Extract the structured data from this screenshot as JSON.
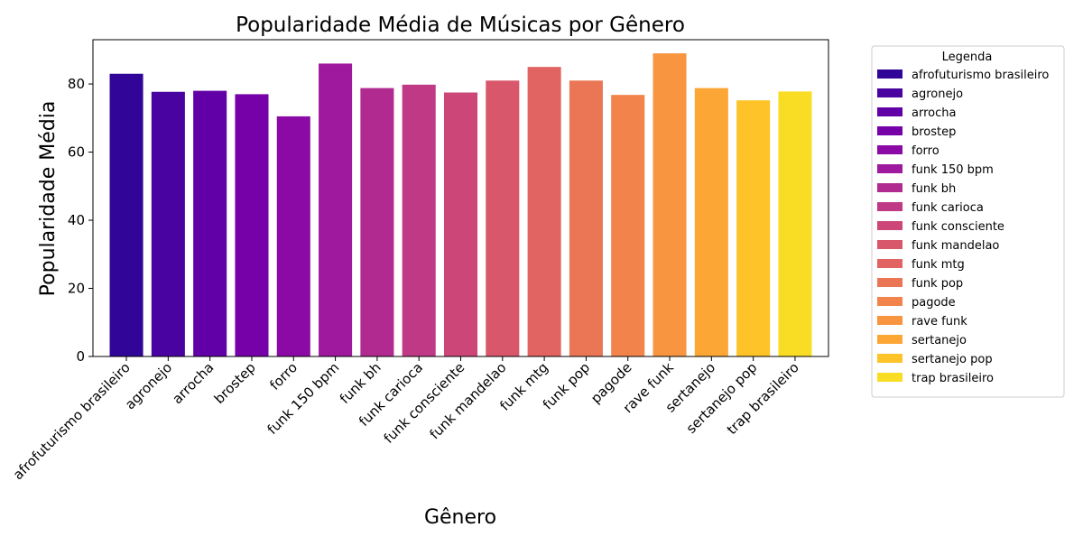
{
  "chart_data": {
    "type": "bar",
    "title": "Popularidade Média de Músicas por Gênero",
    "xlabel": "Gênero",
    "ylabel": "Popularidade Média",
    "ylim": [
      0,
      93
    ],
    "yticks": [
      0,
      20,
      40,
      60,
      80
    ],
    "grid": false,
    "legend_position": "outside-right",
    "legend_title": "Legenda",
    "categories": [
      "afrofuturismo brasileiro",
      "agronejo",
      "arrocha",
      "brostep",
      "forro",
      "funk 150 bpm",
      "funk bh",
      "funk carioca",
      "funk consciente",
      "funk mandelao",
      "funk mtg",
      "funk pop",
      "pagode",
      "rave funk",
      "sertanejo",
      "sertanejo pop",
      "trap brasileiro"
    ],
    "values": [
      83,
      77.7,
      78,
      77,
      70.5,
      86,
      78.8,
      79.8,
      77.5,
      81,
      85,
      81,
      76.8,
      89,
      78.8,
      75.2,
      77.8
    ],
    "colors": [
      "#300597",
      "#4903a0",
      "#6200a7",
      "#7701a8",
      "#8b0aa5",
      "#9e199d",
      "#b02a90",
      "#bf3984",
      "#cc4778",
      "#d8576b",
      "#e16462",
      "#eb7655",
      "#f2844b",
      "#f89540",
      "#fca636",
      "#fdc328",
      "#f9dd25"
    ]
  }
}
